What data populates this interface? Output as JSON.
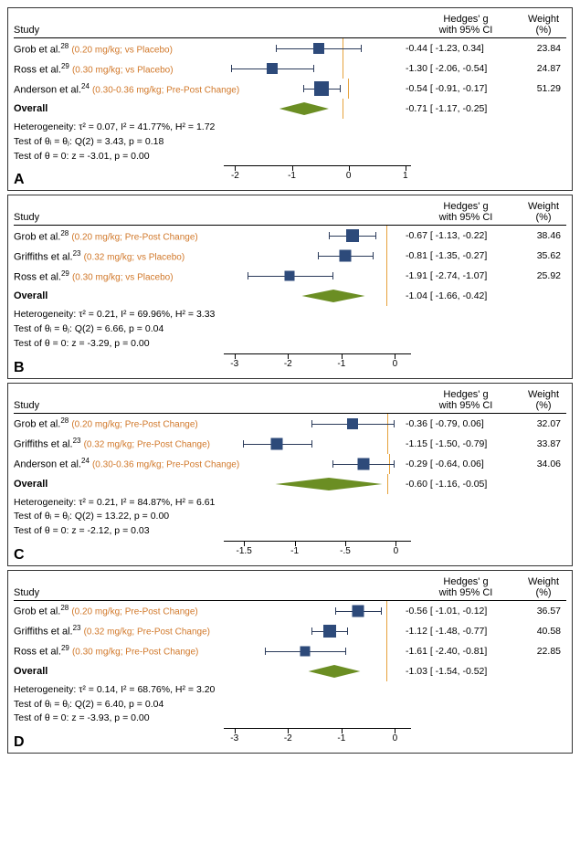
{
  "colors": {
    "marker": "#2d4a7a",
    "ci": "#2a3a5a",
    "diamond": "#6b8e23",
    "zero": "#e6a23c",
    "note": "#d1782a",
    "border": "#333333",
    "bg": "#ffffff"
  },
  "header": {
    "study": "Study",
    "est1": "Hedges' g",
    "est2": "with 95% CI",
    "wt1": "Weight",
    "wt2": "(%)"
  },
  "panels": [
    {
      "id": "A",
      "xmin": -2.2,
      "xmax": 1.1,
      "ticks": [
        -2,
        -1,
        0,
        1
      ],
      "rows": [
        {
          "name": "Grob et al.",
          "sup": "28",
          "note": "(0.20 mg/kg; vs Placebo)",
          "pt": -0.44,
          "lo": -1.23,
          "hi": 0.34,
          "wt": "23.84",
          "ms": 12
        },
        {
          "name": "Ross et al.",
          "sup": "29",
          "note": "(0.30 mg/kg; vs Placebo)",
          "pt": -1.3,
          "lo": -2.06,
          "hi": -0.54,
          "wt": "24.87",
          "ms": 12
        },
        {
          "name": "Anderson et al.",
          "sup": "24",
          "note": "(0.30-0.36 mg/kg; Pre-Post Change)",
          "pt": -0.54,
          "lo": -0.91,
          "hi": -0.17,
          "wt": "51.29",
          "ms": 16
        }
      ],
      "overall": {
        "pt": -0.71,
        "lo": -1.17,
        "hi": -0.25,
        "label": "Overall",
        "est": "-0.71 [ -1.17, -0.25]"
      },
      "footer": [
        "Heterogeneity: τ² = 0.07, I² = 41.77%, H² = 1.72",
        "Test of θᵢ = θⱼ: Q(2) = 3.43, p = 0.18",
        "Test of θ = 0: z = -3.01, p = 0.00"
      ]
    },
    {
      "id": "B",
      "xmin": -3.2,
      "xmax": 0.3,
      "ticks": [
        -3,
        -2,
        -1,
        0
      ],
      "rows": [
        {
          "name": "Grob et al.",
          "sup": "28",
          "note": "(0.20 mg/kg; Pre-Post Change)",
          "pt": -0.67,
          "lo": -1.13,
          "hi": -0.22,
          "wt": "38.46",
          "ms": 14
        },
        {
          "name": "Griffiths et al.",
          "sup": "23",
          "note": "(0.32 mg/kg; vs Placebo)",
          "pt": -0.81,
          "lo": -1.35,
          "hi": -0.27,
          "wt": "35.62",
          "ms": 13
        },
        {
          "name": "Ross et al.",
          "sup": "29",
          "note": "(0.30 mg/kg; vs Placebo)",
          "pt": -1.91,
          "lo": -2.74,
          "hi": -1.07,
          "wt": "25.92",
          "ms": 11
        }
      ],
      "overall": {
        "pt": -1.04,
        "lo": -1.66,
        "hi": -0.42,
        "label": "Overall",
        "est": "-1.04 [ -1.66, -0.42]"
      },
      "footer": [
        "Heterogeneity: τ² = 0.21, I² = 69.96%, H² = 3.33",
        "Test of θᵢ = θⱼ: Q(2) = 6.66, p = 0.04",
        "Test of θ = 0: z = -3.29, p = 0.00"
      ]
    },
    {
      "id": "C",
      "xmin": -1.7,
      "xmax": 0.15,
      "ticks": [
        -1.5,
        -1,
        -0.5,
        0
      ],
      "tick_labels": [
        "-1.5",
        "-1",
        "-.5",
        "0"
      ],
      "rows": [
        {
          "name": "Grob et al.",
          "sup": "28",
          "note": "(0.20 mg/kg; Pre-Post Change)",
          "pt": -0.36,
          "lo": -0.79,
          "hi": 0.06,
          "wt": "32.07",
          "ms": 12
        },
        {
          "name": "Griffiths et al.",
          "sup": "23",
          "note": "(0.32 mg/kg; Pre-Post Change)",
          "pt": -1.15,
          "lo": -1.5,
          "hi": -0.79,
          "wt": "33.87",
          "ms": 13
        },
        {
          "name": "Anderson et al.",
          "sup": "24",
          "note": "(0.30-0.36 mg/kg; Pre-Post Change)",
          "pt": -0.29,
          "lo": -0.64,
          "hi": 0.06,
          "wt": "34.06",
          "ms": 13
        }
      ],
      "overall": {
        "pt": -0.6,
        "lo": -1.16,
        "hi": -0.05,
        "label": "Overall",
        "est": "-0.60 [ -1.16, -0.05]"
      },
      "footer": [
        "Heterogeneity: τ² = 0.21, I² = 84.87%, H² = 6.61",
        "Test of θᵢ = θⱼ: Q(2) = 13.22, p = 0.00",
        "Test of θ = 0: z = -2.12, p = 0.03"
      ]
    },
    {
      "id": "D",
      "xmin": -3.2,
      "xmax": 0.3,
      "ticks": [
        -3,
        -2,
        -1,
        0
      ],
      "rows": [
        {
          "name": "Grob et al.",
          "sup": "28",
          "note": "(0.20 mg/kg; Pre-Post Change)",
          "pt": -0.56,
          "lo": -1.01,
          "hi": -0.12,
          "wt": "36.57",
          "ms": 13
        },
        {
          "name": "Griffiths et al.",
          "sup": "23",
          "note": "(0.32 mg/kg; Pre-Post Change)",
          "pt": -1.12,
          "lo": -1.48,
          "hi": -0.77,
          "wt": "40.58",
          "ms": 14
        },
        {
          "name": "Ross et al.",
          "sup": "29",
          "note": "(0.30 mg/kg; Pre-Post Change)",
          "pt": -1.61,
          "lo": -2.4,
          "hi": -0.81,
          "wt": "22.85",
          "ms": 11
        }
      ],
      "overall": {
        "pt": -1.03,
        "lo": -1.54,
        "hi": -0.52,
        "label": "Overall",
        "est": "-1.03 [ -1.54, -0.52]"
      },
      "footer": [
        "Heterogeneity: τ² = 0.14, I² = 68.76%, H² = 3.20",
        "Test of θᵢ = θⱼ: Q(2) = 6.40, p = 0.04",
        "Test of θ = 0: z = -3.93, p = 0.00"
      ]
    }
  ]
}
